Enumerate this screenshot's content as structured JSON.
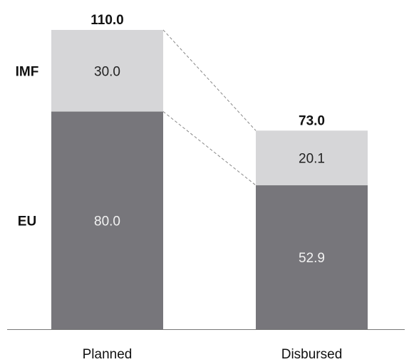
{
  "chart_data": {
    "type": "bar",
    "stacked": true,
    "categories": [
      "Planned",
      "Disbursed"
    ],
    "series": [
      {
        "name": "EU",
        "values": [
          80.0,
          52.9
        ],
        "value_labels": [
          "80.0",
          "52.9"
        ],
        "color": "#77767b",
        "label_color": "#f2f2f2"
      },
      {
        "name": "IMF",
        "values": [
          30.0,
          20.1
        ],
        "value_labels": [
          "30.0",
          "20.1"
        ],
        "color": "#d6d6d8",
        "label_color": "#222222"
      }
    ],
    "totals": [
      110.0,
      73.0
    ],
    "total_labels": [
      "110.0",
      "73.0"
    ],
    "title": "",
    "xlabel": "",
    "ylabel": "",
    "ylim": [
      0,
      110
    ],
    "grid": false,
    "connector_color": "#888888",
    "axis_color": "#777777"
  }
}
